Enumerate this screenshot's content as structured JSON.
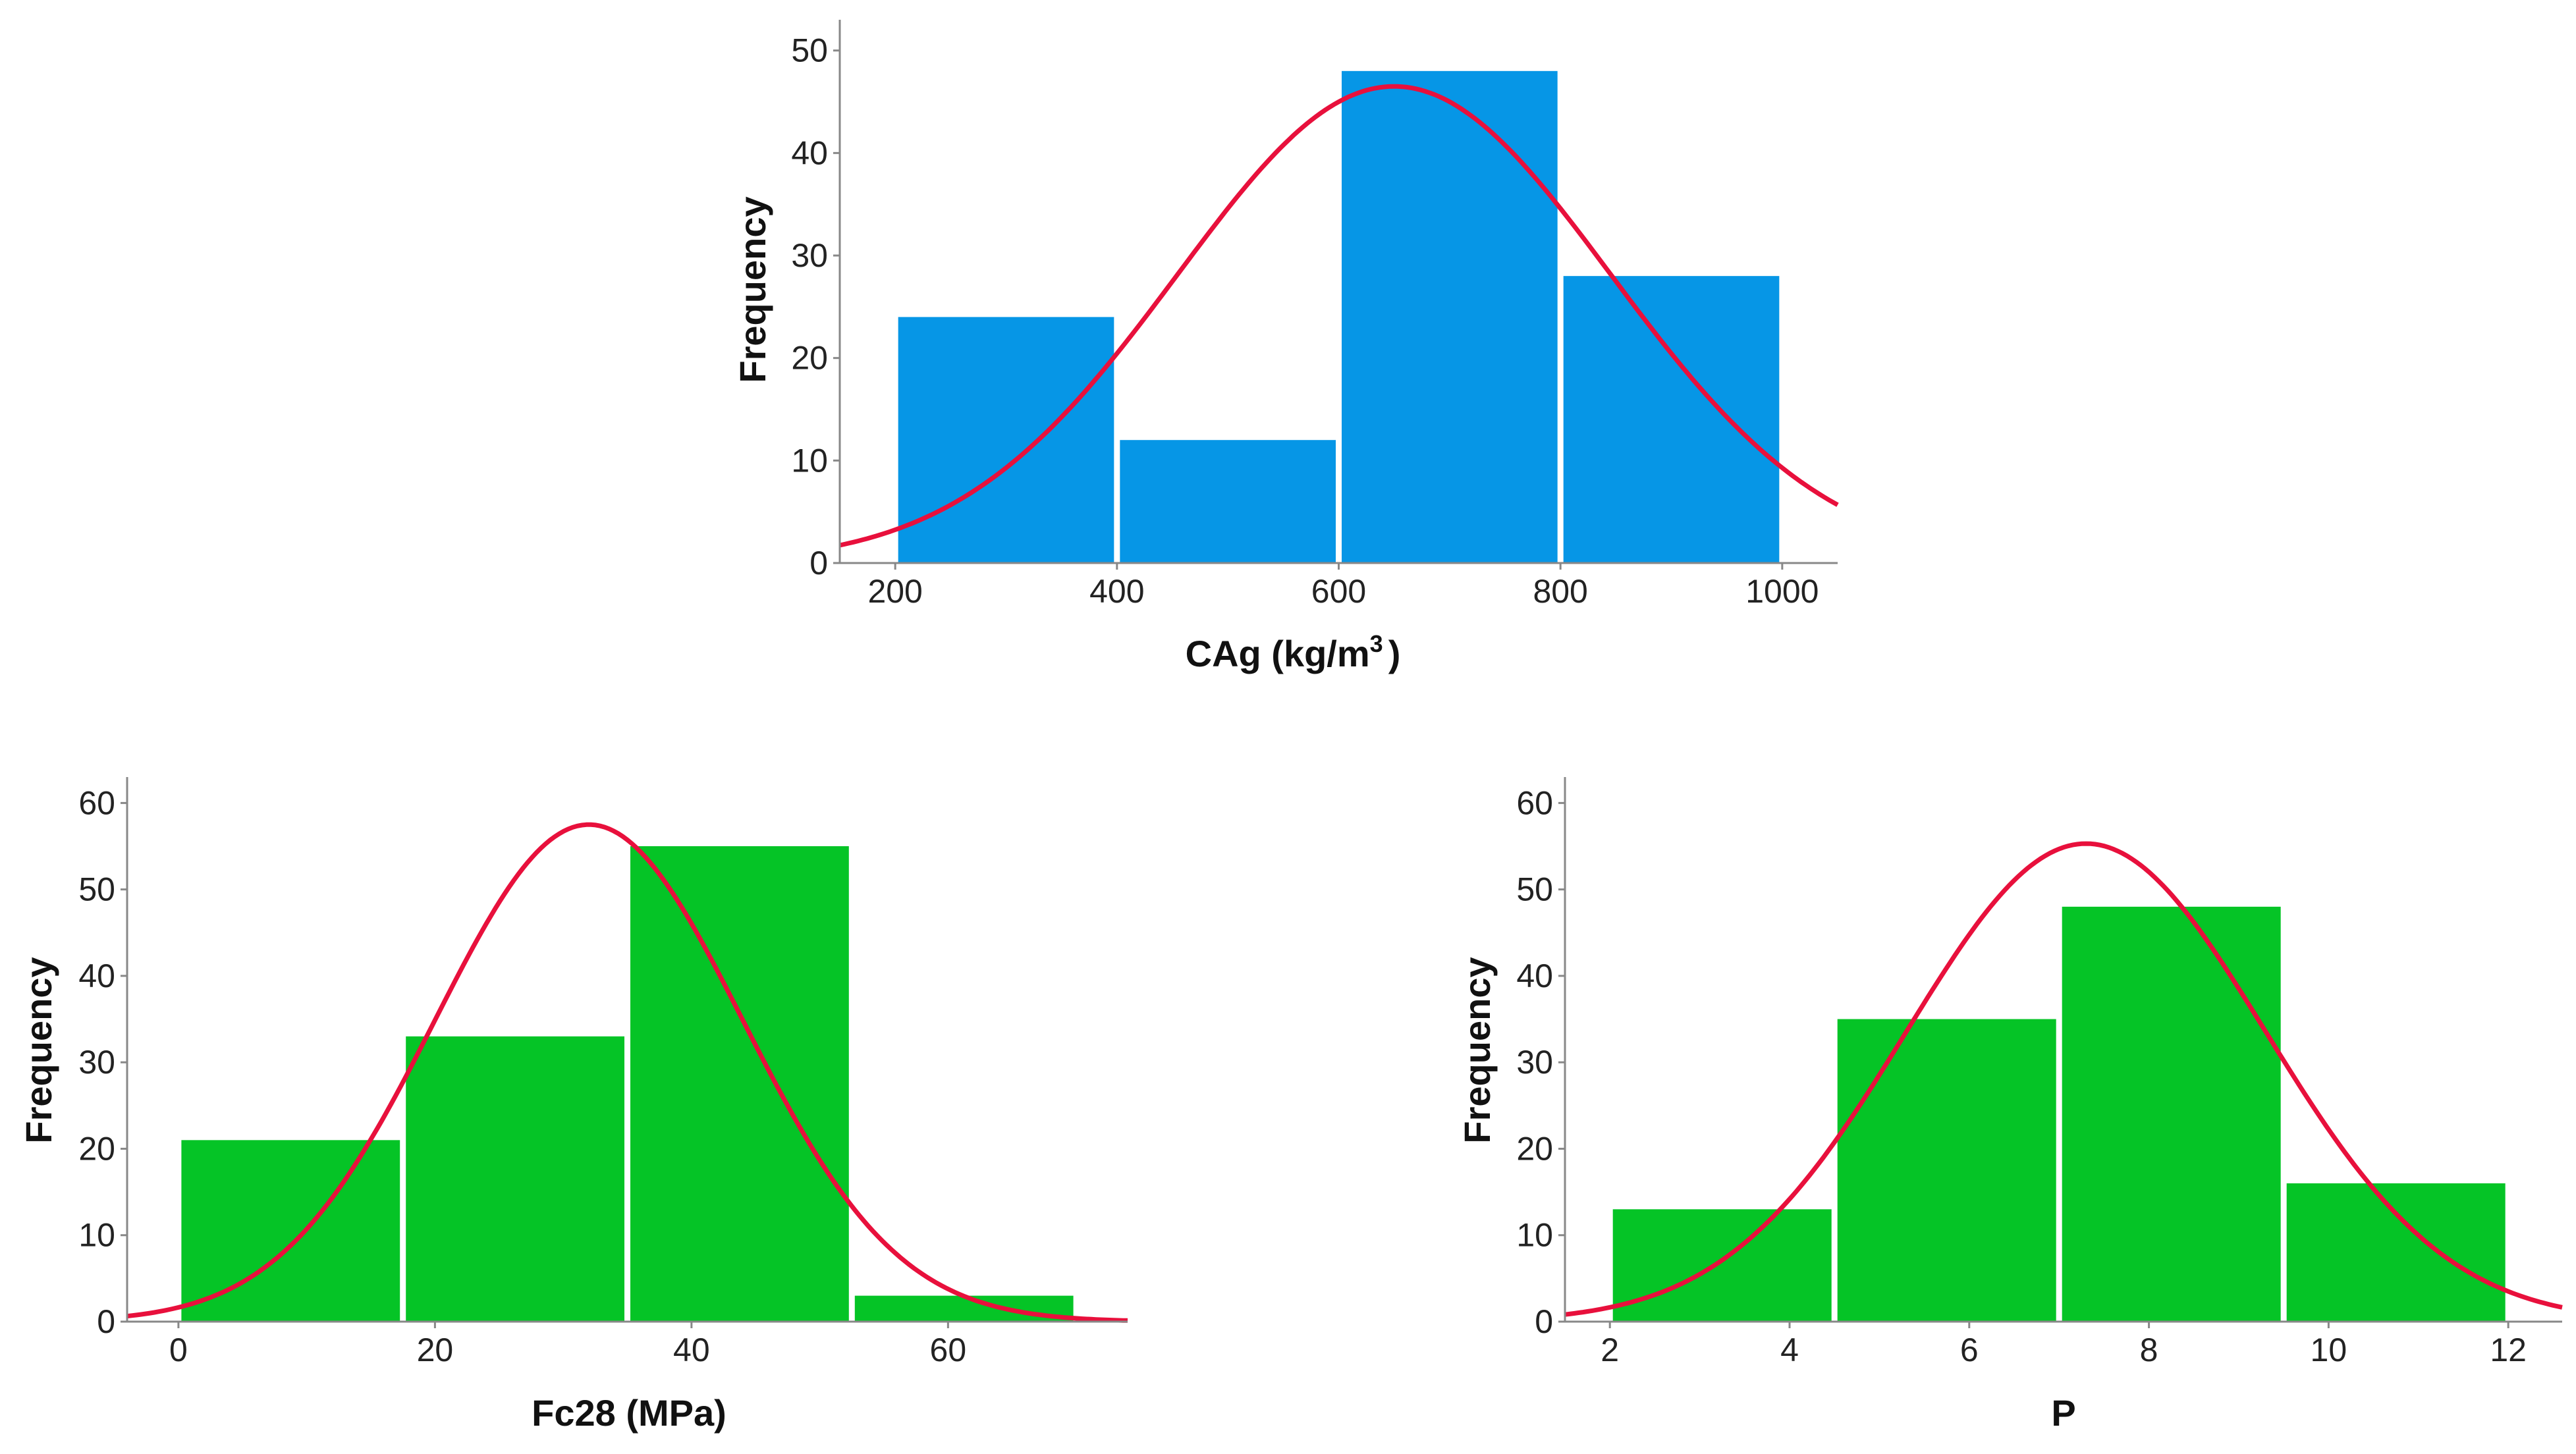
{
  "colors": {
    "blue": "#0696E6",
    "green": "#05C426",
    "curve": "#E8103C",
    "axis": "#888888"
  },
  "chart_data": [
    {
      "type": "bar",
      "subtype": "histogram",
      "xlabel": "CAg (kg/m",
      "xlabel_sup": "3",
      "xlabel_tail": ")",
      "ylabel": "Frequency",
      "bins": [
        [
          200,
          400
        ],
        [
          400,
          600
        ],
        [
          600,
          800
        ],
        [
          800,
          1000
        ]
      ],
      "values": [
        24,
        12,
        48,
        28
      ],
      "xlim": [
        150,
        1050
      ],
      "ylim": [
        0,
        53
      ],
      "xticks": [
        200,
        400,
        600,
        800,
        1000
      ],
      "yticks": [
        0,
        10,
        20,
        30,
        40,
        50
      ],
      "bar_color": "#0696E6",
      "normal_curve": {
        "mean": 650,
        "peak": 46.5,
        "sd": 195
      }
    },
    {
      "type": "bar",
      "subtype": "histogram",
      "xlabel": "Fc28 (MPa)",
      "ylabel": "Frequency",
      "bins": [
        [
          0,
          17.5
        ],
        [
          17.5,
          35
        ],
        [
          35,
          52.5
        ],
        [
          52.5,
          70
        ]
      ],
      "values": [
        21,
        33,
        55,
        3
      ],
      "xlim": [
        -4,
        74
      ],
      "ylim": [
        0,
        63
      ],
      "xticks": [
        0,
        20,
        40,
        60
      ],
      "yticks": [
        0,
        10,
        20,
        30,
        40,
        50,
        60
      ],
      "bar_color": "#05C426",
      "normal_curve": {
        "mean": 32,
        "peak": 57.5,
        "sd": 12
      }
    },
    {
      "type": "bar",
      "subtype": "histogram",
      "xlabel": "P",
      "ylabel": "Frequency",
      "bins": [
        [
          2,
          4.5
        ],
        [
          4.5,
          7
        ],
        [
          7,
          9.5
        ],
        [
          9.5,
          12
        ]
      ],
      "values": [
        13,
        35,
        48,
        16
      ],
      "xlim": [
        1.5,
        12.6
      ],
      "ylim": [
        0,
        63
      ],
      "xticks": [
        2,
        4,
        6,
        8,
        10,
        12
      ],
      "yticks": [
        0,
        10,
        20,
        30,
        40,
        50,
        60
      ],
      "bar_color": "#05C426",
      "normal_curve": {
        "mean": 7.3,
        "peak": 55.3,
        "sd": 2
      }
    }
  ]
}
